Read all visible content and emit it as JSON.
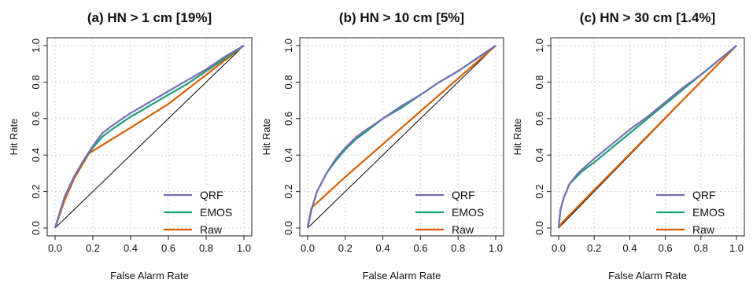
{
  "chart_data": [
    {
      "type": "line",
      "title": "(a) HN > 1 cm [19%]",
      "xlabel": "False Alarm Rate",
      "ylabel": "Hit Rate",
      "xlim": [
        0,
        1
      ],
      "ylim": [
        0,
        1
      ],
      "xticks": [
        "0.0",
        "0.2",
        "0.4",
        "0.6",
        "0.8",
        "1.0"
      ],
      "yticks": [
        "0.0",
        "0.2",
        "0.4",
        "0.6",
        "0.8",
        "1.0"
      ],
      "grid": true,
      "legend": "bottom-right",
      "diagonal": true,
      "series": [
        {
          "name": "QRF",
          "color": "#7570b3",
          "x": [
            0,
            0.05,
            0.1,
            0.15,
            0.2,
            0.25,
            0.3,
            0.4,
            0.5,
            0.6,
            0.7,
            0.8,
            0.9,
            1.0
          ],
          "y": [
            0,
            0.17,
            0.28,
            0.37,
            0.45,
            0.52,
            0.56,
            0.63,
            0.69,
            0.75,
            0.81,
            0.87,
            0.94,
            1.0
          ]
        },
        {
          "name": "EMOS",
          "color": "#1b9e77",
          "x": [
            0,
            0.05,
            0.1,
            0.15,
            0.2,
            0.25,
            0.3,
            0.4,
            0.5,
            0.6,
            0.7,
            0.8,
            0.9,
            1.0
          ],
          "y": [
            0,
            0.17,
            0.28,
            0.37,
            0.44,
            0.5,
            0.54,
            0.61,
            0.67,
            0.73,
            0.79,
            0.86,
            0.93,
            1.0
          ]
        },
        {
          "name": "Raw",
          "color": "#d95f02",
          "x": [
            0,
            0.05,
            0.1,
            0.18,
            0.4,
            0.6,
            0.8,
            1.0
          ],
          "y": [
            0,
            0.15,
            0.27,
            0.41,
            0.55,
            0.68,
            0.84,
            1.0
          ]
        }
      ]
    },
    {
      "type": "line",
      "title": "(b) HN > 10 cm [5%]",
      "xlabel": "False Alarm Rate",
      "ylabel": "Hit Rate",
      "xlim": [
        0,
        1
      ],
      "ylim": [
        0,
        1
      ],
      "xticks": [
        "0.0",
        "0.2",
        "0.4",
        "0.6",
        "0.8",
        "1.0"
      ],
      "yticks": [
        "0.0",
        "0.2",
        "0.4",
        "0.6",
        "0.8",
        "1.0"
      ],
      "grid": true,
      "legend": "bottom-right",
      "diagonal": true,
      "series": [
        {
          "name": "QRF",
          "color": "#7570b3",
          "x": [
            0,
            0.02,
            0.05,
            0.1,
            0.15,
            0.2,
            0.26,
            0.3,
            0.4,
            0.5,
            0.6,
            0.7,
            0.8,
            0.9,
            1.0
          ],
          "y": [
            0,
            0.1,
            0.2,
            0.3,
            0.38,
            0.44,
            0.5,
            0.53,
            0.6,
            0.67,
            0.73,
            0.8,
            0.86,
            0.93,
            1.0
          ]
        },
        {
          "name": "EMOS",
          "color": "#1b9e77",
          "x": [
            0,
            0.02,
            0.05,
            0.1,
            0.15,
            0.2,
            0.26,
            0.3,
            0.4,
            0.5,
            0.6,
            0.7,
            0.8,
            0.9,
            1.0
          ],
          "y": [
            0,
            0.1,
            0.2,
            0.3,
            0.37,
            0.43,
            0.49,
            0.52,
            0.6,
            0.66,
            0.73,
            0.8,
            0.86,
            0.93,
            1.0
          ]
        },
        {
          "name": "Raw",
          "color": "#d95f02",
          "x": [
            0,
            0.02,
            0.2,
            0.4,
            0.6,
            0.8,
            1.0
          ],
          "y": [
            0,
            0.11,
            0.28,
            0.46,
            0.64,
            0.82,
            1.0
          ]
        }
      ]
    },
    {
      "type": "line",
      "title": "(c) HN > 30 cm [1.4%]",
      "xlabel": "False Alarm Rate",
      "ylabel": "Hit Rate",
      "xlim": [
        0,
        1
      ],
      "ylim": [
        0,
        1
      ],
      "xticks": [
        "0.0",
        "0.2",
        "0.4",
        "0.6",
        "0.8",
        "1.0"
      ],
      "yticks": [
        "0.0",
        "0.2",
        "0.4",
        "0.6",
        "0.8",
        "1.0"
      ],
      "grid": true,
      "legend": "bottom-right",
      "diagonal": true,
      "series": [
        {
          "name": "QRF",
          "color": "#7570b3",
          "x": [
            0,
            0.01,
            0.03,
            0.06,
            0.1,
            0.13,
            0.2,
            0.3,
            0.4,
            0.5,
            0.6,
            0.7,
            0.8,
            0.9,
            1.0
          ],
          "y": [
            0,
            0.1,
            0.17,
            0.24,
            0.29,
            0.32,
            0.38,
            0.46,
            0.54,
            0.61,
            0.69,
            0.77,
            0.84,
            0.92,
            1.0
          ]
        },
        {
          "name": "EMOS",
          "color": "#1b9e77",
          "x": [
            0,
            0.01,
            0.03,
            0.06,
            0.1,
            0.13,
            0.2,
            0.3,
            0.4,
            0.5,
            0.6,
            0.7,
            0.8,
            0.9,
            1.0
          ],
          "y": [
            0,
            0.1,
            0.17,
            0.24,
            0.28,
            0.31,
            0.36,
            0.44,
            0.52,
            0.6,
            0.68,
            0.76,
            0.84,
            0.92,
            1.0
          ]
        },
        {
          "name": "Raw",
          "color": "#d95f02",
          "x": [
            0,
            0.02,
            1.0
          ],
          "y": [
            0,
            0.03,
            1.0
          ]
        }
      ]
    }
  ]
}
